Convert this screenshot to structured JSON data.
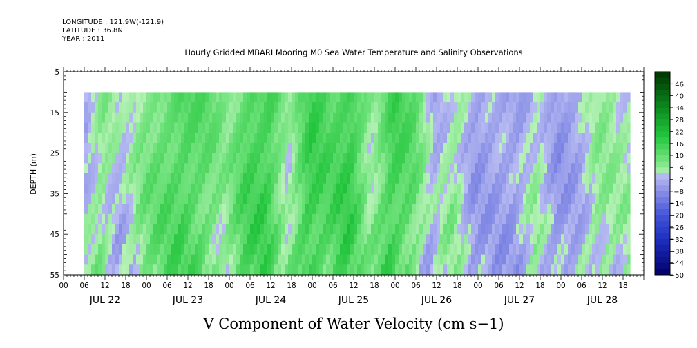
{
  "header": {
    "longitude": "LONGITUDE : 121.9W(-121.9)",
    "latitude": "LATITUDE : 36.8N",
    "year": "YEAR : 2011",
    "title": "Hourly Gridded MBARI Mooring M0 Sea Water Temperature and Salinity Observations"
  },
  "chart_data": {
    "type": "heatmap",
    "title": "Hourly Gridded MBARI Mooring M0 Sea Water Temperature and Salinity Observations",
    "xlabel": "V Component of Water Velocity (cm s−1)",
    "ylabel": "DEPTH (m)",
    "yrange": [
      55,
      5
    ],
    "y_ticks": [
      "5",
      "15",
      "25",
      "35",
      "45",
      "55"
    ],
    "data_depth_range": [
      10,
      55
    ],
    "x_hour_labels": [
      "00",
      "06",
      "12",
      "18"
    ],
    "days": [
      "JUL 22",
      "JUL 23",
      "JUL 24",
      "JUL 25",
      "JUL 26",
      "JUL 27",
      "JUL 28"
    ],
    "data_start_hour": 6,
    "data_end_hour": 164,
    "colorbar_levels": [
      "46",
      "40",
      "34",
      "28",
      "22",
      "16",
      "10",
      "4",
      "−2",
      "−8",
      "−14",
      "−20",
      "−26",
      "−32",
      "−38",
      "−44",
      "−50"
    ],
    "colorbar_range": [
      -50,
      52
    ],
    "colors": {
      "negative_max": "#000066",
      "negative_mid": "#2a3fd0",
      "near_zero_neg": "#b0b4f0",
      "near_zero_pos": "#b0f0b0",
      "positive_mid": "#22c040",
      "positive_max": "#004400"
    },
    "field_profile": {
      "hours": [
        6,
        12,
        18,
        24,
        30,
        36,
        42,
        48,
        54,
        60,
        66,
        72,
        78,
        84,
        90,
        96,
        102,
        108,
        114,
        120,
        126,
        132,
        138,
        144,
        150,
        156,
        162,
        164
      ],
      "values": [
        -3,
        5,
        -2,
        6,
        10,
        13,
        10,
        4,
        13,
        15,
        2,
        16,
        12,
        16,
        3,
        15,
        10,
        -3,
        4,
        -5,
        -4,
        -5,
        2,
        -6,
        -3,
        4,
        2,
        2
      ]
    }
  }
}
